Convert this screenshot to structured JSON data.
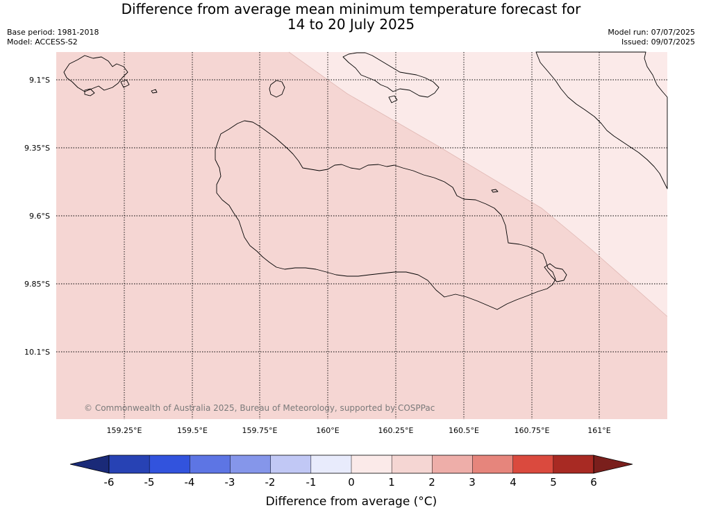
{
  "title": {
    "line1": "Difference from average mean minimum temperature forecast for",
    "line2": "14 to 20 July 2025"
  },
  "meta": {
    "base_period": "Base period: 1981-2018",
    "model": "Model: ACCESS-S2",
    "model_run": "Model run: 07/07/2025",
    "issued": "Issued: 09/07/2025"
  },
  "map": {
    "lat_labels": [
      "9.1°S",
      "9.35°S",
      "9.6°S",
      "9.85°S",
      "10.1°S"
    ],
    "lon_labels": [
      "159.25°E",
      "159.5°E",
      "159.75°E",
      "160°E",
      "160.25°E",
      "160.5°E",
      "160.75°E",
      "161°E"
    ],
    "copyright": "© Commonwealth of Australia 2025, Bureau of Meteorology, supported by COSPPac",
    "fill_colors": {
      "zone_1_to_2": "#f5d6d3",
      "zone_0_to_1": "#fbeae9"
    }
  },
  "colorbar": {
    "title": "Difference from average (°C)",
    "ticks": [
      "-6",
      "-5",
      "-4",
      "-3",
      "-2",
      "-1",
      "0",
      "1",
      "2",
      "3",
      "4",
      "5",
      "6"
    ],
    "colors": [
      "#1a2a78",
      "#2742b4",
      "#3253dd",
      "#5d75e4",
      "#8596ea",
      "#c1c8f5",
      "#e8ebfc",
      "#fbeae9",
      "#f5d6d3",
      "#eeaea9",
      "#e6857c",
      "#da4a3e",
      "#a82a23",
      "#7a1f1c"
    ]
  }
}
